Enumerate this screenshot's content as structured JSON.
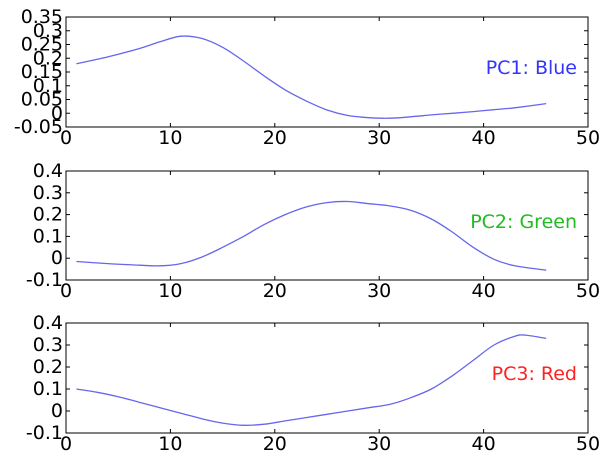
{
  "chart_data": [
    {
      "type": "line",
      "xlim": [
        0,
        50
      ],
      "ylim": [
        -0.05,
        0.35
      ],
      "xticks": [
        "0",
        "10",
        "20",
        "30",
        "40",
        "50"
      ],
      "yticks": [
        "-0.05",
        "0",
        "0.05",
        "0.1",
        "0.15",
        "0.2",
        "0.25",
        "0.3",
        "0.35"
      ],
      "grid": false,
      "annotation": {
        "text": "PC1: Blue",
        "color": "#3333ff"
      },
      "line_color": "#6666ee",
      "series": [
        {
          "x": [
            1,
            4,
            7,
            9,
            11,
            13,
            15,
            17,
            19,
            21,
            23,
            25,
            27,
            29,
            31,
            33,
            35,
            37,
            39,
            41,
            43,
            46
          ],
          "y": [
            0.18,
            0.205,
            0.235,
            0.26,
            0.28,
            0.272,
            0.24,
            0.19,
            0.135,
            0.085,
            0.045,
            0.012,
            -0.008,
            -0.016,
            -0.018,
            -0.013,
            -0.006,
            0.0,
            0.006,
            0.013,
            0.02,
            0.035
          ]
        }
      ]
    },
    {
      "type": "line",
      "xlim": [
        0,
        50
      ],
      "ylim": [
        -0.1,
        0.4
      ],
      "xticks": [
        "0",
        "10",
        "20",
        "30",
        "40",
        "50"
      ],
      "yticks": [
        "-0.1",
        "0",
        "0.1",
        "0.2",
        "0.3",
        "0.4"
      ],
      "grid": false,
      "annotation": {
        "text": "PC2: Green",
        "color": "#22bb22"
      },
      "line_color": "#6666ee",
      "series": [
        {
          "x": [
            1,
            4,
            7,
            9,
            11,
            13,
            15,
            17,
            19,
            21,
            23,
            25,
            27,
            29,
            31,
            33,
            35,
            37,
            39,
            41,
            43,
            46
          ],
          "y": [
            -0.015,
            -0.025,
            -0.032,
            -0.035,
            -0.025,
            0.005,
            0.05,
            0.1,
            0.155,
            0.2,
            0.235,
            0.255,
            0.26,
            0.25,
            0.24,
            0.22,
            0.18,
            0.12,
            0.05,
            -0.005,
            -0.035,
            -0.055
          ]
        }
      ]
    },
    {
      "type": "line",
      "xlim": [
        0,
        50
      ],
      "ylim": [
        -0.1,
        0.4
      ],
      "xticks": [
        "0",
        "10",
        "20",
        "30",
        "40",
        "50"
      ],
      "yticks": [
        "-0.1",
        "0",
        "0.1",
        "0.2",
        "0.3",
        "0.4"
      ],
      "grid": false,
      "annotation": {
        "text": "PC3: Red",
        "color": "#ff2222"
      },
      "line_color": "#6666ee",
      "series": [
        {
          "x": [
            1,
            3,
            5,
            7,
            9,
            11,
            13,
            15,
            17,
            19,
            21,
            23,
            25,
            27,
            29,
            31,
            33,
            35,
            37,
            39,
            41,
            43,
            44,
            46
          ],
          "y": [
            0.1,
            0.085,
            0.065,
            0.04,
            0.015,
            -0.01,
            -0.035,
            -0.055,
            -0.065,
            -0.06,
            -0.045,
            -0.03,
            -0.015,
            0.0,
            0.015,
            0.03,
            0.06,
            0.1,
            0.16,
            0.23,
            0.3,
            0.34,
            0.345,
            0.33
          ]
        }
      ]
    }
  ]
}
